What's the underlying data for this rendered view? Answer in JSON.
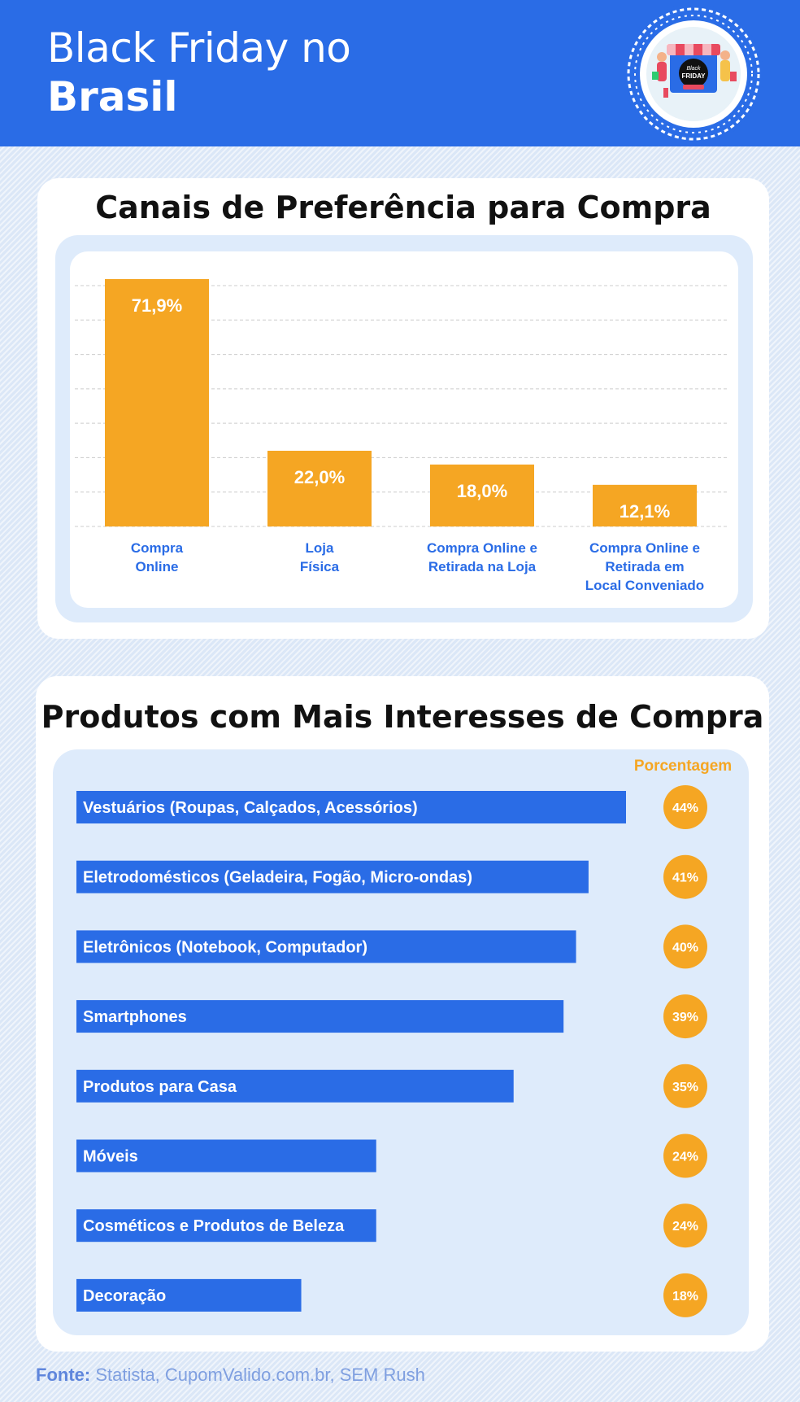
{
  "header": {
    "title_line1": "Black Friday no",
    "title_line2": "Brasil",
    "badge_text_1": "Black",
    "badge_text_2": "FRIDAY"
  },
  "colors": {
    "brand_blue": "#2a6ce6",
    "bar_orange": "#f5a623",
    "label_blue": "#2a6ce6",
    "panel_light_blue": "#deebfb"
  },
  "chart_data": [
    {
      "type": "bar",
      "title": "Canais de Preferência para Compra",
      "categories": [
        [
          "Compra",
          "Online"
        ],
        [
          "Loja",
          "Física"
        ],
        [
          "Compra Online e",
          "Retirada na Loja"
        ],
        [
          "Compra Online e",
          "Retirada em",
          "Local Conveniado"
        ]
      ],
      "values": [
        71.9,
        22.0,
        18.0,
        12.1
      ],
      "value_labels": [
        "71,9%",
        "22,0%",
        "18,0%",
        "12,1%"
      ],
      "ylim": [
        0,
        70
      ],
      "grid": true
    },
    {
      "type": "bar",
      "orientation": "horizontal",
      "title": "Produtos com Mais Interesses de Compra",
      "value_header": "Porcentagem",
      "categories": [
        "Vestuários (Roupas, Calçados, Acessórios)",
        "Eletrodomésticos (Geladeira, Fogão, Micro-ondas)",
        "Eletrônicos (Notebook, Computador)",
        "Smartphones",
        "Produtos para Casa",
        "Móveis",
        "Cosméticos e Produtos de Beleza",
        "Decoração"
      ],
      "values": [
        44,
        41,
        40,
        39,
        35,
        24,
        24,
        18
      ],
      "value_labels": [
        "44%",
        "41%",
        "40%",
        "39%",
        "35%",
        "24%",
        "24%",
        "18%"
      ]
    }
  ],
  "footer": {
    "source_label": "Fonte:",
    "source_text": " Statista, CupomValido.com.br, SEM Rush"
  }
}
